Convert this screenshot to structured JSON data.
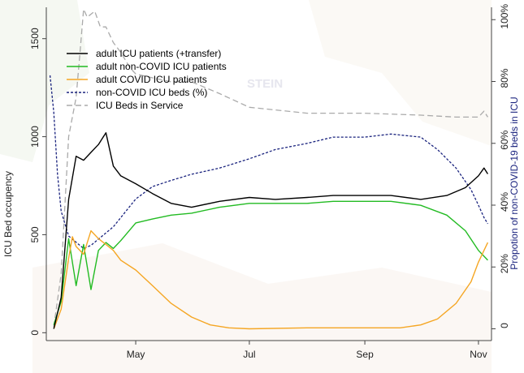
{
  "chart_data": {
    "type": "line",
    "x_type": "date",
    "x_ticks": [
      {
        "date": "2020-05-01",
        "label": "May"
      },
      {
        "date": "2020-07-01",
        "label": "Jul"
      },
      {
        "date": "2020-09-01",
        "label": "Sep"
      },
      {
        "date": "2020-11-01",
        "label": "Nov"
      }
    ],
    "xlim": [
      "2020-03-14",
      "2020-11-08"
    ],
    "ylabel_left": "ICU Bed occupency",
    "ylim_left": [
      -40,
      1660
    ],
    "yticks_left": [
      0,
      500,
      1000,
      1500
    ],
    "ylabel_right": "Propotion of non-COVID-19 beds in ICU",
    "ylim_right": [
      -0.038,
      1.04
    ],
    "yticks_right": [
      0,
      0.2,
      0.4,
      0.6,
      0.8,
      1.0
    ],
    "yticklabels_right": [
      "0",
      "20%",
      "40%",
      "60%",
      "80%",
      "100%"
    ],
    "legend_position": "top-left",
    "background_text": "STEIN",
    "series": [
      {
        "name": "adult ICU patients (+transfer)",
        "color": "#000000",
        "style": "solid",
        "axis": "left",
        "points": [
          [
            "2020-03-18",
            20
          ],
          [
            "2020-03-22",
            180
          ],
          [
            "2020-03-26",
            680
          ],
          [
            "2020-03-30",
            900
          ],
          [
            "2020-04-03",
            880
          ],
          [
            "2020-04-07",
            920
          ],
          [
            "2020-04-11",
            960
          ],
          [
            "2020-04-15",
            1020
          ],
          [
            "2020-04-19",
            850
          ],
          [
            "2020-04-23",
            800
          ],
          [
            "2020-05-01",
            760
          ],
          [
            "2020-05-10",
            710
          ],
          [
            "2020-05-20",
            660
          ],
          [
            "2020-05-31",
            640
          ],
          [
            "2020-06-15",
            670
          ],
          [
            "2020-07-01",
            690
          ],
          [
            "2020-07-15",
            680
          ],
          [
            "2020-08-01",
            690
          ],
          [
            "2020-08-15",
            700
          ],
          [
            "2020-09-01",
            700
          ],
          [
            "2020-09-15",
            700
          ],
          [
            "2020-10-01",
            680
          ],
          [
            "2020-10-15",
            700
          ],
          [
            "2020-10-25",
            740
          ],
          [
            "2020-11-01",
            800
          ],
          [
            "2020-11-04",
            840
          ],
          [
            "2020-11-06",
            810
          ]
        ]
      },
      {
        "name": "adult non-COVID ICU patients",
        "color": "#22bb22",
        "style": "solid",
        "axis": "left",
        "points": [
          [
            "2020-03-18",
            40
          ],
          [
            "2020-03-22",
            160
          ],
          [
            "2020-03-26",
            480
          ],
          [
            "2020-03-30",
            240
          ],
          [
            "2020-04-03",
            450
          ],
          [
            "2020-04-07",
            220
          ],
          [
            "2020-04-11",
            420
          ],
          [
            "2020-04-15",
            460
          ],
          [
            "2020-04-19",
            430
          ],
          [
            "2020-04-23",
            470
          ],
          [
            "2020-05-01",
            560
          ],
          [
            "2020-05-10",
            580
          ],
          [
            "2020-05-20",
            600
          ],
          [
            "2020-05-31",
            610
          ],
          [
            "2020-06-15",
            640
          ],
          [
            "2020-07-01",
            660
          ],
          [
            "2020-07-15",
            660
          ],
          [
            "2020-08-01",
            660
          ],
          [
            "2020-08-15",
            670
          ],
          [
            "2020-09-01",
            670
          ],
          [
            "2020-09-15",
            670
          ],
          [
            "2020-10-01",
            650
          ],
          [
            "2020-10-15",
            600
          ],
          [
            "2020-10-25",
            520
          ],
          [
            "2020-11-01",
            420
          ],
          [
            "2020-11-06",
            370
          ]
        ]
      },
      {
        "name": "adult COVID ICU patients",
        "color": "#f5a623",
        "style": "solid",
        "axis": "left",
        "points": [
          [
            "2020-03-18",
            20
          ],
          [
            "2020-03-22",
            120
          ],
          [
            "2020-03-26",
            380
          ],
          [
            "2020-03-28",
            490
          ],
          [
            "2020-03-30",
            440
          ],
          [
            "2020-04-03",
            400
          ],
          [
            "2020-04-07",
            520
          ],
          [
            "2020-04-11",
            480
          ],
          [
            "2020-04-15",
            450
          ],
          [
            "2020-04-19",
            420
          ],
          [
            "2020-04-23",
            370
          ],
          [
            "2020-05-01",
            320
          ],
          [
            "2020-05-10",
            240
          ],
          [
            "2020-05-20",
            150
          ],
          [
            "2020-05-31",
            80
          ],
          [
            "2020-06-10",
            40
          ],
          [
            "2020-06-20",
            25
          ],
          [
            "2020-07-01",
            20
          ],
          [
            "2020-08-01",
            25
          ],
          [
            "2020-09-01",
            25
          ],
          [
            "2020-09-20",
            25
          ],
          [
            "2020-10-01",
            40
          ],
          [
            "2020-10-10",
            70
          ],
          [
            "2020-10-20",
            150
          ],
          [
            "2020-10-28",
            260
          ],
          [
            "2020-11-01",
            360
          ],
          [
            "2020-11-06",
            460
          ]
        ]
      },
      {
        "name": "non-COVID ICU beds (%)",
        "color": "#1a237e",
        "style": "dotted",
        "axis": "right",
        "points": [
          [
            "2020-03-16",
            0.82
          ],
          [
            "2020-03-18",
            0.7
          ],
          [
            "2020-03-20",
            0.5
          ],
          [
            "2020-03-22",
            0.38
          ],
          [
            "2020-03-26",
            0.3
          ],
          [
            "2020-03-30",
            0.28
          ],
          [
            "2020-04-03",
            0.26
          ],
          [
            "2020-04-07",
            0.27
          ],
          [
            "2020-04-11",
            0.29
          ],
          [
            "2020-04-15",
            0.31
          ],
          [
            "2020-04-19",
            0.33
          ],
          [
            "2020-04-23",
            0.36
          ],
          [
            "2020-05-01",
            0.42
          ],
          [
            "2020-05-10",
            0.46
          ],
          [
            "2020-05-20",
            0.48
          ],
          [
            "2020-05-31",
            0.5
          ],
          [
            "2020-06-15",
            0.52
          ],
          [
            "2020-07-01",
            0.55
          ],
          [
            "2020-07-15",
            0.58
          ],
          [
            "2020-08-01",
            0.6
          ],
          [
            "2020-08-15",
            0.62
          ],
          [
            "2020-09-01",
            0.62
          ],
          [
            "2020-09-15",
            0.63
          ],
          [
            "2020-10-01",
            0.62
          ],
          [
            "2020-10-10",
            0.58
          ],
          [
            "2020-10-20",
            0.52
          ],
          [
            "2020-10-28",
            0.45
          ],
          [
            "2020-11-01",
            0.4
          ],
          [
            "2020-11-04",
            0.36
          ],
          [
            "2020-11-06",
            0.34
          ]
        ]
      },
      {
        "name": "ICU Beds in Service",
        "color": "#aaaaaa",
        "style": "dashed",
        "axis": "left",
        "points": [
          [
            "2020-03-18",
            30
          ],
          [
            "2020-03-22",
            300
          ],
          [
            "2020-03-26",
            1000
          ],
          [
            "2020-03-30",
            1200
          ],
          [
            "2020-04-01",
            1420
          ],
          [
            "2020-04-03",
            1650
          ],
          [
            "2020-04-05",
            1610
          ],
          [
            "2020-04-09",
            1640
          ],
          [
            "2020-04-12",
            1560
          ],
          [
            "2020-04-15",
            1560
          ],
          [
            "2020-04-19",
            1480
          ],
          [
            "2020-04-23",
            1430
          ],
          [
            "2020-04-28",
            1350
          ],
          [
            "2020-05-01",
            1320
          ],
          [
            "2020-05-10",
            1300
          ],
          [
            "2020-05-20",
            1280
          ],
          [
            "2020-05-31",
            1280
          ],
          [
            "2020-06-15",
            1220
          ],
          [
            "2020-07-01",
            1150
          ],
          [
            "2020-08-01",
            1120
          ],
          [
            "2020-09-01",
            1120
          ],
          [
            "2020-10-01",
            1110
          ],
          [
            "2020-10-20",
            1100
          ],
          [
            "2020-11-01",
            1100
          ],
          [
            "2020-11-04",
            1130
          ],
          [
            "2020-11-06",
            1100
          ]
        ]
      }
    ]
  }
}
